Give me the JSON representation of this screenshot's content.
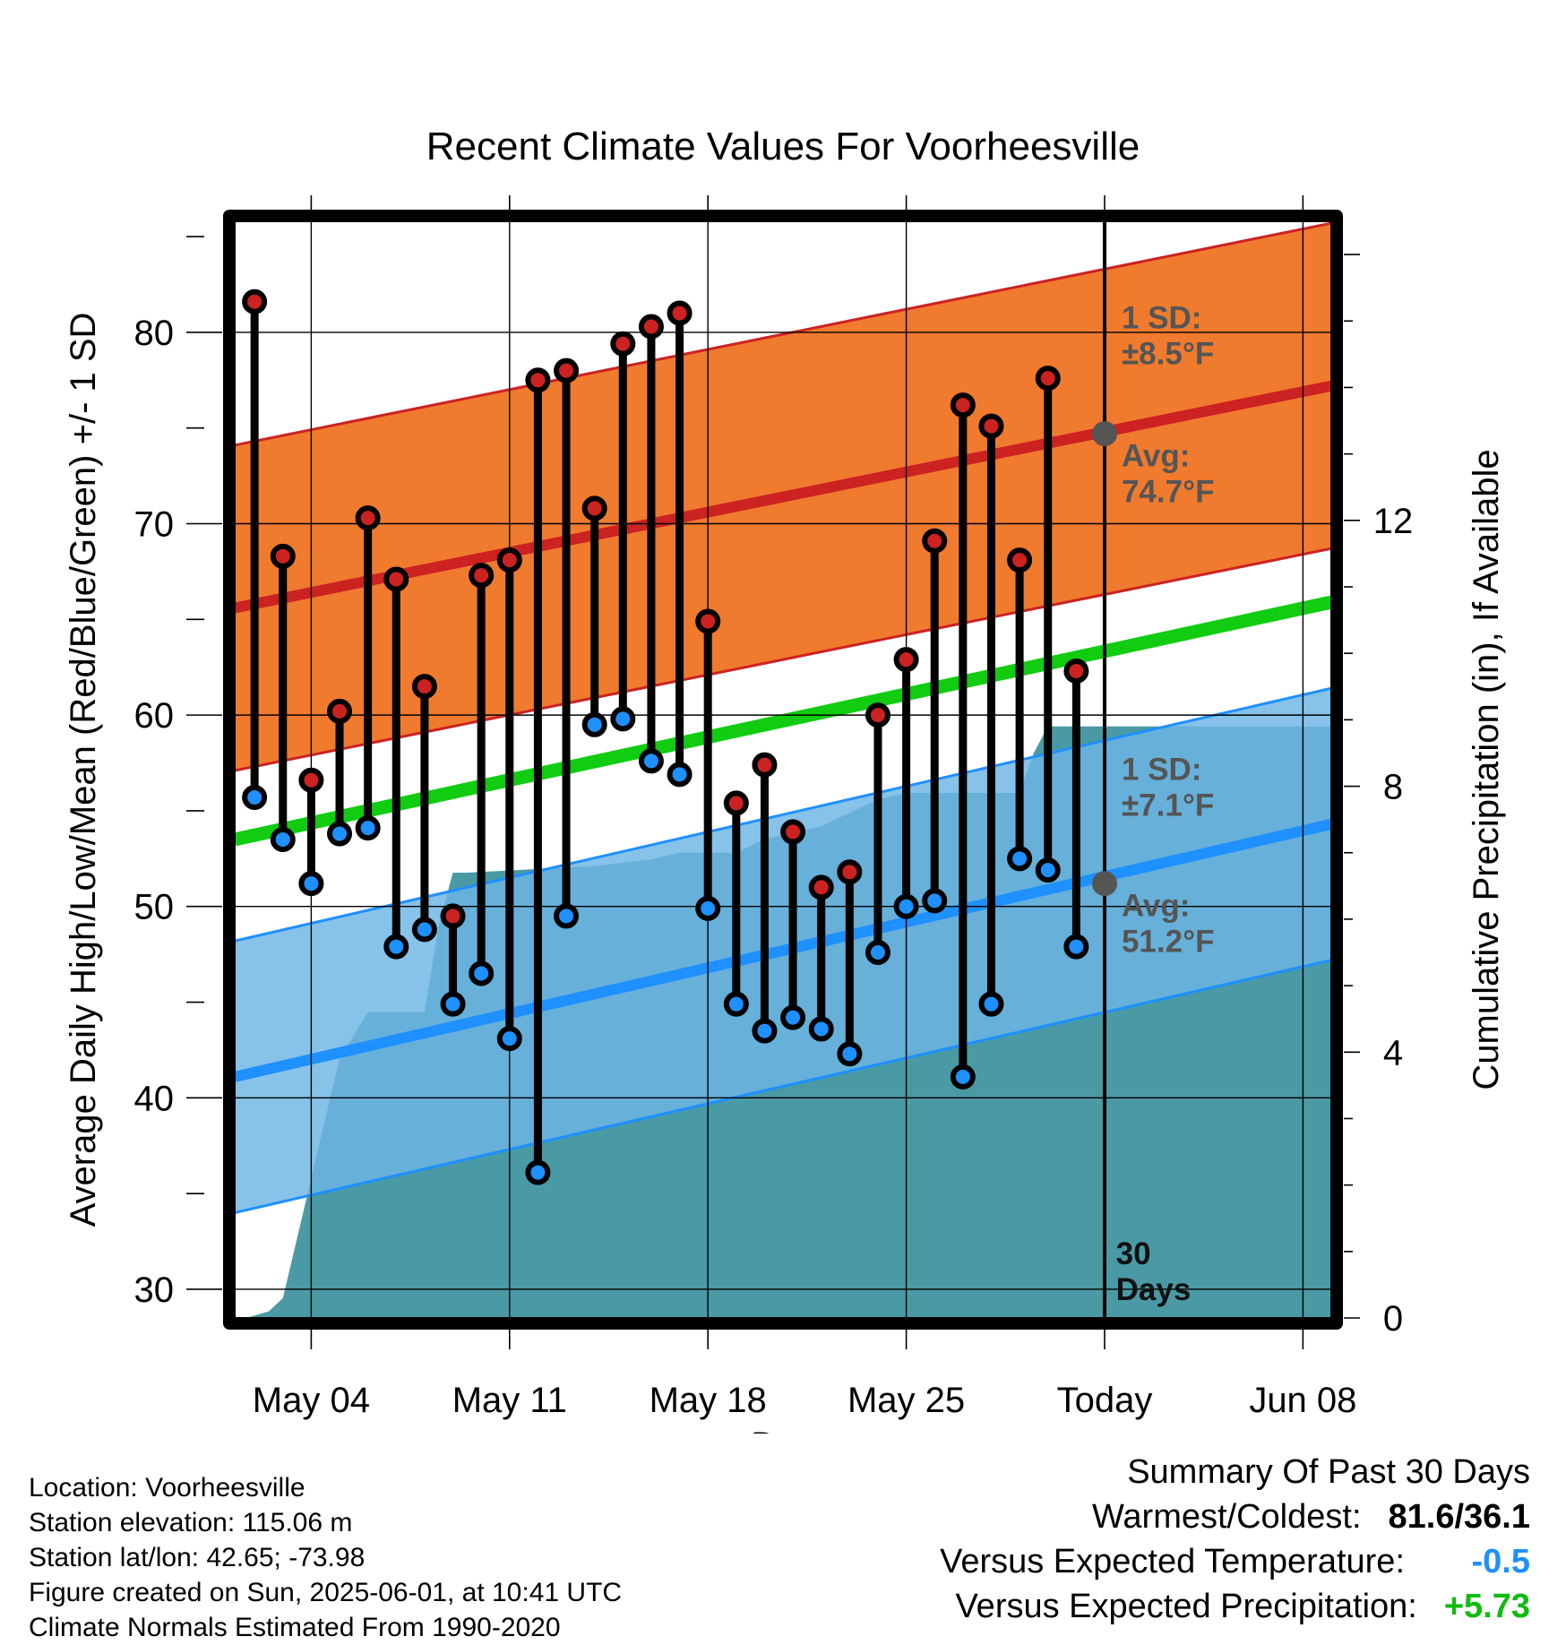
{
  "chart_data": {
    "type": "line",
    "title": "Recent Climate Values For Voorheesville",
    "xlabel": "Day",
    "ylabel": "Average Daily High/Low/Mean (Red/Blue/Green) +/- 1 SD",
    "y2label": "Cumulative Precipitation (in), If Available",
    "ylim": [
      28.5,
      85.8
    ],
    "y_ticks": [
      "30",
      "40",
      "50",
      "60",
      "70",
      "80"
    ],
    "y2lim": [
      0,
      16.5
    ],
    "y2_ticks": [
      "0",
      "4",
      "8",
      "12"
    ],
    "x_tick_labels": [
      "May 04",
      "May 11",
      "May 18",
      "May 25",
      "Today",
      "Jun 08"
    ],
    "x_tick_days": [
      2,
      9,
      16,
      23,
      30,
      37
    ],
    "xlim": [
      -0.7,
      38.0
    ],
    "grid": true,
    "today_label": [
      "30",
      "Days"
    ],
    "normals": {
      "high_mean": [
        65.6,
        77.2
      ],
      "high_sd_label": [
        "1 SD:",
        "±8.5°F"
      ],
      "high_avg_label": [
        "Avg:",
        "74.7°F"
      ],
      "high_sd": 8.5,
      "high_today": 74.7,
      "low_mean": [
        41.1,
        54.3
      ],
      "low_sd_label": [
        "1 SD:",
        "±7.1°F"
      ],
      "low_avg_label": [
        "Avg:",
        "51.2°F"
      ],
      "low_sd": 7.1,
      "low_today": 51.2,
      "mean_line": [
        53.5,
        65.9
      ]
    },
    "series": [
      {
        "name": "High",
        "color": "#cc2222",
        "values": [
          81.6,
          68.3,
          56.6,
          60.2,
          70.3,
          67.1,
          61.5,
          49.5,
          67.3,
          68.1,
          77.5,
          78.0,
          70.8,
          79.4,
          80.3,
          81.0,
          64.9,
          55.4,
          57.4,
          53.9,
          51.0,
          51.8,
          60.0,
          62.9,
          69.1,
          76.2,
          75.1,
          68.1,
          77.6,
          62.3
        ]
      },
      {
        "name": "Low",
        "color": "#1e90ff",
        "values": [
          55.7,
          53.5,
          51.2,
          53.8,
          54.1,
          47.9,
          48.8,
          44.9,
          46.5,
          43.1,
          36.1,
          49.5,
          59.5,
          59.8,
          57.6,
          56.9,
          49.9,
          44.9,
          43.5,
          44.2,
          43.6,
          42.3,
          47.6,
          50.0,
          50.3,
          41.1,
          44.9,
          52.5,
          51.9,
          47.9
        ]
      },
      {
        "name": "Cumulative Precipitation",
        "color": "#4a9aa5",
        "x": [
          -0.3,
          0.5,
          1.0,
          2.0,
          3.0,
          4.0,
          5.0,
          6.0,
          6.5,
          7.0,
          7.5,
          12.0,
          14.0,
          15.0,
          16.0,
          17.0,
          18.0,
          19.0,
          20.0,
          21.0,
          22.0,
          23.0,
          24.0,
          25.0,
          26.0,
          27.0,
          27.5,
          28.0,
          38.0
        ],
        "values": [
          0.0,
          0.1,
          0.3,
          2.1,
          3.9,
          4.6,
          4.6,
          4.6,
          5.9,
          6.7,
          6.7,
          6.8,
          6.9,
          7.0,
          7.0,
          7.0,
          7.2,
          7.3,
          7.4,
          7.6,
          7.8,
          7.9,
          7.9,
          7.9,
          7.9,
          7.9,
          8.5,
          8.9,
          8.9
        ]
      }
    ]
  },
  "footer": {
    "location": "Location: Voorheesville",
    "elevation": "Station elevation: 115.06 m",
    "latlon": "Station lat/lon: 42.65; -73.98",
    "created": "Figure created on Sun, 2025-06-01, at 10:41 UTC",
    "normals": "Climate Normals Estimated From 1990-2020"
  },
  "summary": {
    "heading": "Summary Of Past 30 Days",
    "warmest_label": "Warmest/Coldest:",
    "warmest_value": "81.6/36.1",
    "temp_label": "Versus Expected Temperature:",
    "temp_value": "-0.5",
    "temp_color": "#1e90ff",
    "precip_label": "Versus Expected Precipitation:",
    "precip_value": "+5.73",
    "precip_color": "#11bb11"
  }
}
